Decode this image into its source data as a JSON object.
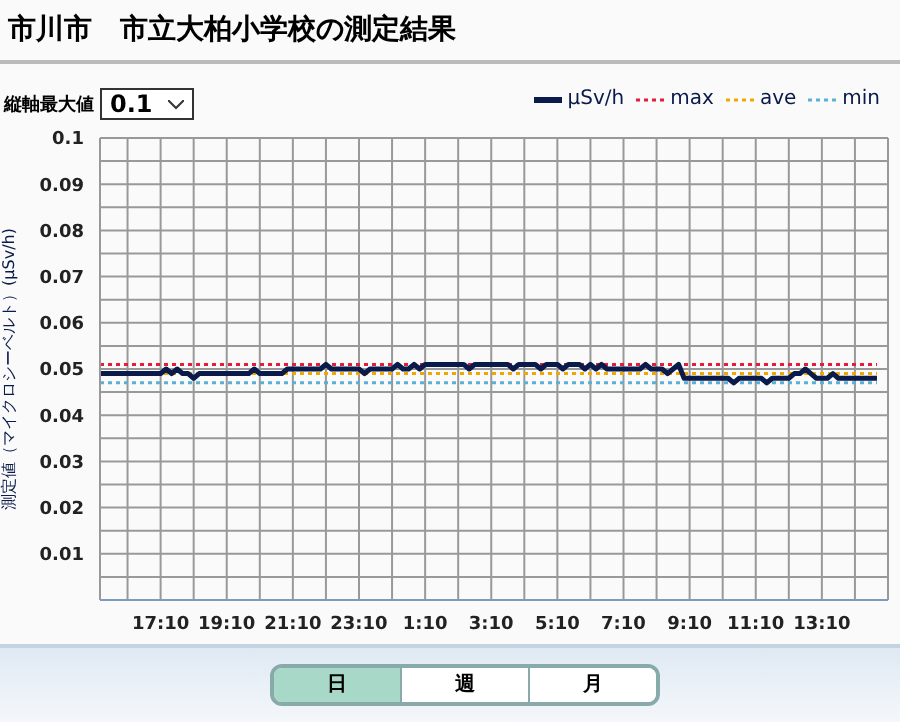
{
  "chart_data": {
    "type": "line",
    "title": "市川市　市立大柏小学校の測定結果",
    "ylabel": "測定値（マイクロシーベルト）(μSv/h)",
    "annotations": [
      "縦軸最大値",
      "0.1",
      "日",
      "週",
      "月"
    ],
    "categories": [
      null,
      null,
      null,
      null,
      null,
      null,
      null,
      null,
      null,
      null,
      null,
      "17:10",
      null,
      null,
      null,
      null,
      null,
      null,
      null,
      null,
      null,
      null,
      null,
      "19:10",
      null,
      null,
      null,
      null,
      null,
      null,
      null,
      null,
      null,
      null,
      null,
      "21:10",
      null,
      null,
      null,
      null,
      null,
      null,
      null,
      null,
      null,
      null,
      null,
      "23:10",
      null,
      null,
      null,
      null,
      null,
      null,
      null,
      null,
      null,
      null,
      null,
      "1:10",
      null,
      null,
      null,
      null,
      null,
      null,
      null,
      null,
      null,
      null,
      null,
      "3:10",
      null,
      null,
      null,
      null,
      null,
      null,
      null,
      null,
      null,
      null,
      null,
      "5:10",
      null,
      null,
      null,
      null,
      null,
      null,
      null,
      null,
      null,
      null,
      null,
      "7:10",
      null,
      null,
      null,
      null,
      null,
      null,
      null,
      null,
      null,
      null,
      null,
      "9:10",
      null,
      null,
      null,
      null,
      null,
      null,
      null,
      null,
      null,
      null,
      null,
      "11:10",
      null,
      null,
      null,
      null,
      null,
      null,
      null,
      null,
      null,
      null,
      null,
      "13:10",
      null,
      null,
      null,
      null,
      null,
      null,
      null,
      null,
      null,
      null,
      null,
      null
    ],
    "ylim": [
      0,
      0.1
    ],
    "yticks": [
      {
        "value": 0,
        "label": null
      },
      {
        "value": 0.005,
        "label": null
      },
      0.01,
      {
        "value": 0.015,
        "label": null
      },
      0.02,
      {
        "value": 0.025,
        "label": null
      },
      0.03,
      {
        "value": 0.035,
        "label": null
      },
      0.04,
      {
        "value": 0.045,
        "label": null
      },
      0.05,
      {
        "value": 0.055,
        "label": null
      },
      0.06,
      {
        "value": 0.065,
        "label": null
      },
      0.07,
      {
        "value": 0.075,
        "label": null
      },
      0.08,
      {
        "value": 0.085,
        "label": null
      },
      0.09,
      {
        "value": 0.095,
        "label": null
      },
      0.1
    ],
    "grid": true,
    "legend": "top right",
    "line_style": "solid",
    "series": [
      {
        "name": "μSv/h",
        "color": "#0a1a4a",
        "values": [
          0.049,
          0.049,
          0.049,
          0.049,
          0.049,
          0.049,
          0.049,
          0.049,
          0.049,
          0.049,
          0.049,
          0.049,
          0.05,
          0.049,
          0.05,
          0.049,
          0.049,
          0.048,
          0.049,
          0.049,
          0.049,
          0.049,
          0.049,
          0.049,
          0.049,
          0.049,
          0.049,
          0.049,
          0.05,
          0.049,
          0.049,
          0.049,
          0.049,
          0.049,
          0.05,
          0.05,
          0.05,
          0.05,
          0.05,
          0.05,
          0.05,
          0.051,
          0.05,
          0.05,
          0.05,
          0.05,
          0.05,
          0.05,
          0.049,
          0.05,
          0.05,
          0.05,
          0.05,
          0.05,
          0.051,
          0.05,
          0.05,
          0.051,
          0.05,
          0.051,
          0.051,
          0.051,
          0.051,
          0.051,
          0.051,
          0.051,
          0.051,
          0.05,
          0.051,
          0.051,
          0.051,
          0.051,
          0.051,
          0.051,
          0.051,
          0.05,
          0.051,
          0.051,
          0.051,
          0.051,
          0.05,
          0.051,
          0.051,
          0.051,
          0.05,
          0.051,
          0.051,
          0.051,
          0.05,
          0.051,
          0.05,
          0.051,
          0.05,
          0.05,
          0.05,
          0.05,
          0.05,
          0.05,
          0.05,
          0.051,
          0.05,
          0.05,
          0.05,
          0.049,
          0.05,
          0.051,
          0.048,
          0.048,
          0.048,
          0.048,
          0.048,
          0.048,
          0.048,
          0.048,
          0.048,
          0.047,
          0.048,
          0.048,
          0.048,
          0.048,
          0.048,
          0.047,
          0.048,
          0.048,
          0.048,
          0.048,
          0.049,
          0.049,
          0.05,
          0.049,
          0.048,
          0.048,
          0.048,
          0.049,
          0.048,
          0.048,
          0.048,
          0.048,
          0.048,
          0.048,
          0.048,
          0.048,
          null,
          null
        ]
      }
    ],
    "ref_lines": [
      {
        "axis": "y",
        "value": 0.051,
        "label": "max",
        "color": "#e0203a",
        "line_style": "dotted"
      },
      {
        "axis": "y",
        "value": 0.049,
        "label": "ave",
        "color": "#f0a800",
        "line_style": "dotted"
      },
      {
        "axis": "y",
        "value": 0.047,
        "label": "min",
        "color": "#5ab0d8",
        "line_style": "dotted"
      }
    ]
  }
}
